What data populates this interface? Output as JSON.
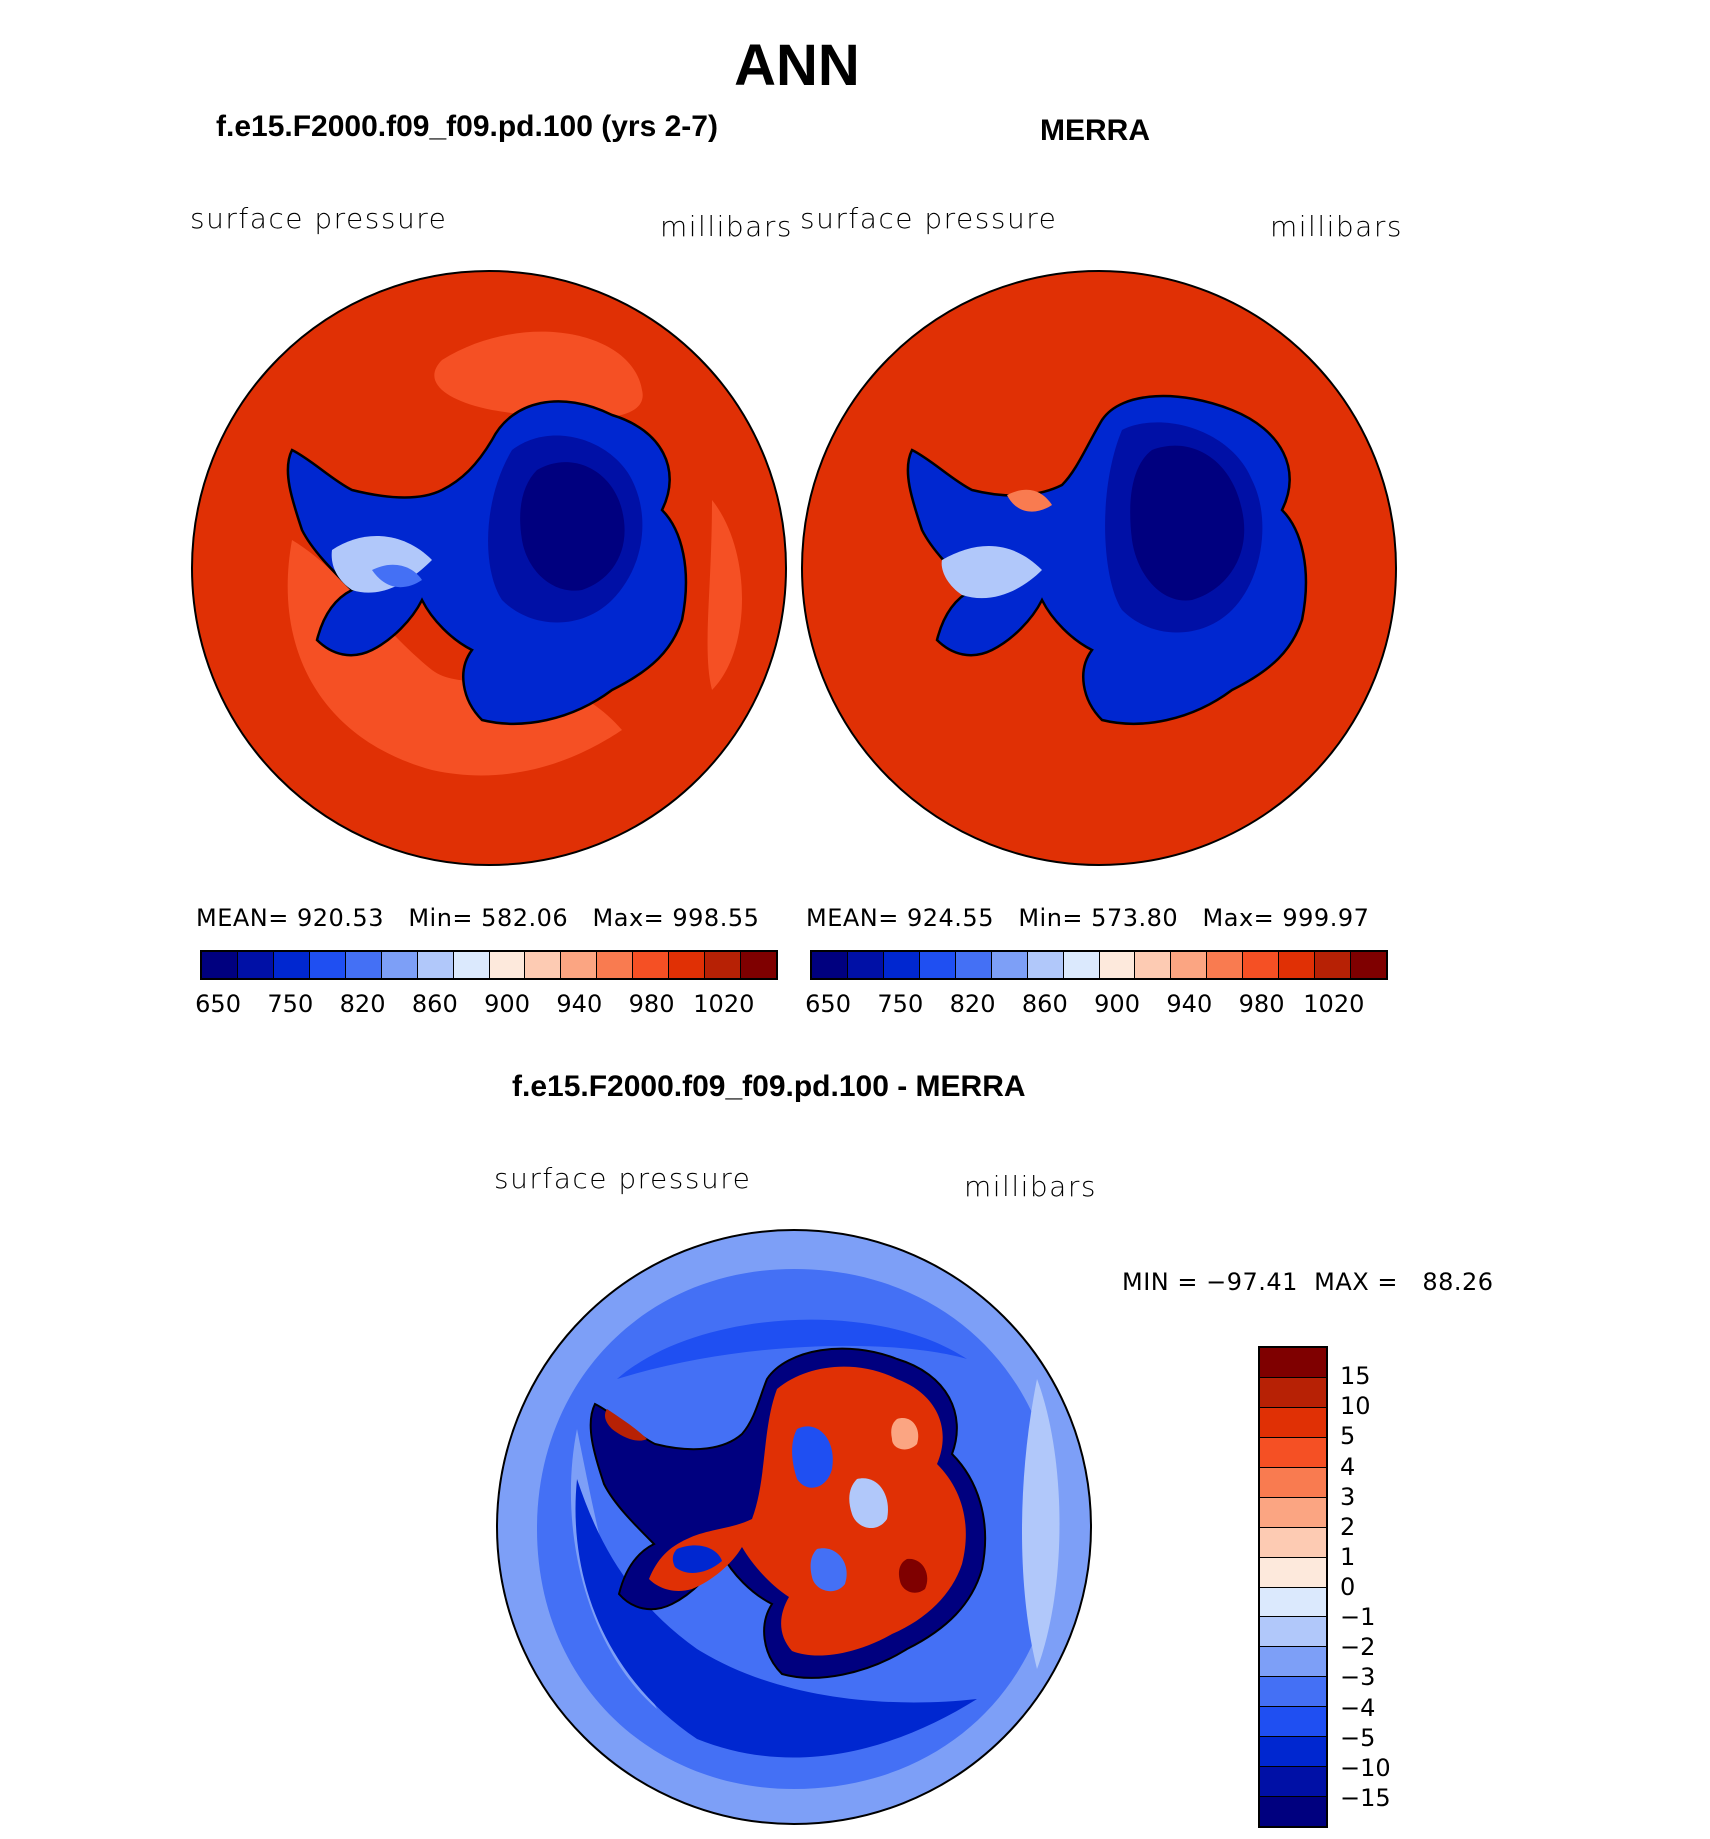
{
  "header": {
    "title": "ANN"
  },
  "panels": [
    {
      "title": "f.e15.F2000.f09_f09.pd.100 (yrs 2-7)",
      "left_label": "surface pressure",
      "right_label": "millibars",
      "stats": "MEAN= 920.53   Min= 582.06   Max= 998.55"
    },
    {
      "title": "MERRA",
      "left_label": "surface pressure",
      "right_label": "millibars",
      "stats": "MEAN= 924.55   Min= 573.80   Max= 999.97"
    }
  ],
  "abs_colorbar": {
    "colors": [
      "#00007f",
      "#0010a6",
      "#0027d0",
      "#1f4ff2",
      "#4470f5",
      "#7d9ff7",
      "#b1c8fa",
      "#dbe9fd",
      "#fde9dc",
      "#fdcbb3",
      "#fba582",
      "#f97b50",
      "#f55024",
      "#e03005",
      "#b72105",
      "#7f0000"
    ],
    "tick_labels": [
      "650",
      "750",
      "820",
      "860",
      "900",
      "940",
      "980",
      "1020"
    ]
  },
  "diff_panel": {
    "title": "f.e15.F2000.f09_f09.pd.100 - MERRA",
    "left_label": "surface pressure",
    "right_label": "millibars",
    "minmax": "MIN = −97.41  MAX =   88.26"
  },
  "diff_colorbar": {
    "colors_top_to_bottom": [
      "#7f0000",
      "#b72105",
      "#e03005",
      "#f55024",
      "#f97b50",
      "#fba582",
      "#fdcbb3",
      "#fde9dc",
      "#dbe9fd",
      "#b1c8fa",
      "#7d9ff7",
      "#4470f5",
      "#1f4ff2",
      "#0027d0",
      "#0010a6",
      "#00007f"
    ],
    "tick_labels": [
      "15",
      "10",
      "5",
      "4",
      "3",
      "2",
      "1",
      "0",
      "−1",
      "−2",
      "−3",
      "−4",
      "−5",
      "−10",
      "−15"
    ]
  }
}
